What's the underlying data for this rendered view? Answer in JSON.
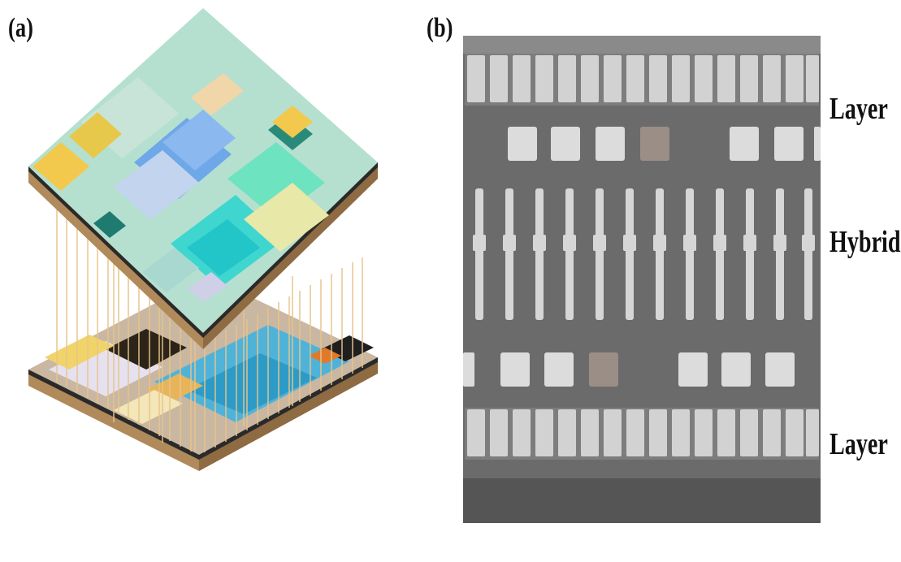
{
  "panels": {
    "a": {
      "label": "(a)"
    },
    "b": {
      "label": "(b)",
      "side_labels": {
        "top": "Layer",
        "middle": "Hybrid",
        "bottom": "Layer"
      }
    }
  },
  "colors": {
    "substrate_edge": "#b08a5a",
    "substrate_dark": "#2a2a2a",
    "wire": "#e8c48a",
    "sem_background": "#6b6b6b",
    "sem_pad": "#d9d9d9"
  }
}
